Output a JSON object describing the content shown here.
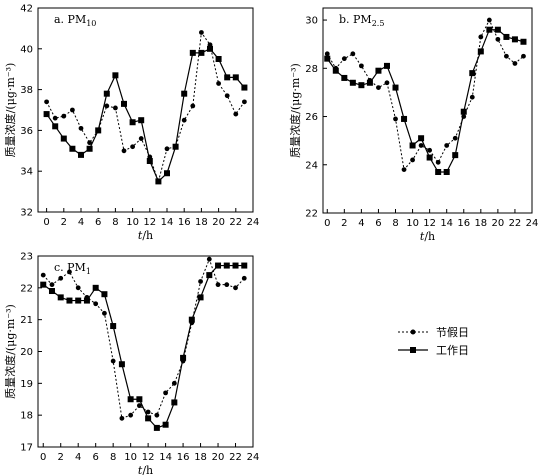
{
  "legend": {
    "holiday": "节假日",
    "workday": "工作日"
  },
  "chart_data": [
    {
      "type": "line",
      "id": "pm10",
      "title": "a. PM",
      "title_sub": "10",
      "xlabel_italic": "t",
      "xlabel_rest": "/h",
      "ylabel": "质量浓度/(μg·m⁻³)",
      "xlim": [
        -1,
        24
      ],
      "ylim": [
        32,
        42
      ],
      "xticks": [
        0,
        2,
        4,
        6,
        8,
        10,
        12,
        14,
        16,
        18,
        20,
        22,
        24
      ],
      "yticks": [
        32,
        34,
        36,
        38,
        40,
        42
      ],
      "x": [
        0,
        1,
        2,
        3,
        4,
        5,
        6,
        7,
        8,
        9,
        10,
        11,
        12,
        13,
        14,
        15,
        16,
        17,
        18,
        19,
        20,
        21,
        22,
        23
      ],
      "series": [
        {
          "name": "节假日",
          "values": [
            37.4,
            36.6,
            36.7,
            37.0,
            36.1,
            35.4,
            36.0,
            37.2,
            37.1,
            35.0,
            35.2,
            35.6,
            34.7,
            33.5,
            35.1,
            35.2,
            36.5,
            37.2,
            40.8,
            40.2,
            38.3,
            37.7,
            36.8,
            37.4
          ]
        },
        {
          "name": "工作日",
          "values": [
            36.8,
            36.2,
            35.6,
            35.1,
            34.8,
            35.1,
            36.0,
            37.8,
            38.7,
            37.3,
            36.4,
            36.5,
            34.5,
            33.5,
            33.9,
            35.2,
            37.8,
            39.8,
            39.8,
            40.0,
            39.5,
            38.6,
            38.6,
            38.1
          ]
        }
      ]
    },
    {
      "type": "line",
      "id": "pm25",
      "title": "b. PM",
      "title_sub": "2.5",
      "xlabel_italic": "t",
      "xlabel_rest": "/h",
      "ylabel": "质量浓度/(μg·m⁻³)",
      "xlim": [
        -0.5,
        24
      ],
      "ylim": [
        22,
        30.5
      ],
      "xticks": [
        0,
        2,
        4,
        6,
        8,
        10,
        12,
        14,
        16,
        18,
        20,
        22,
        24
      ],
      "yticks": [
        22,
        24,
        26,
        28,
        30
      ],
      "x": [
        0,
        1,
        2,
        3,
        4,
        5,
        6,
        7,
        8,
        9,
        10,
        11,
        12,
        13,
        14,
        15,
        16,
        17,
        18,
        19,
        20,
        21,
        22,
        23
      ],
      "series": [
        {
          "name": "节假日",
          "values": [
            28.6,
            28.0,
            28.4,
            28.6,
            28.1,
            27.5,
            27.2,
            27.4,
            25.9,
            23.8,
            24.2,
            24.8,
            24.6,
            24.1,
            24.8,
            25.1,
            26.0,
            26.8,
            29.3,
            30.0,
            29.2,
            28.5,
            28.2,
            28.5
          ]
        },
        {
          "name": "工作日",
          "values": [
            28.4,
            27.9,
            27.6,
            27.4,
            27.3,
            27.4,
            27.9,
            28.1,
            27.2,
            25.9,
            24.8,
            25.1,
            24.3,
            23.7,
            23.7,
            24.4,
            26.2,
            27.8,
            28.7,
            29.6,
            29.6,
            29.3,
            29.2,
            29.1
          ]
        }
      ]
    },
    {
      "type": "line",
      "id": "pm1",
      "title": "c. PM",
      "title_sub": "1",
      "xlabel_italic": "t",
      "xlabel_rest": "/h",
      "ylabel": "质量浓度/(μg·m⁻³)",
      "xlim": [
        -0.6,
        24
      ],
      "ylim": [
        17,
        23
      ],
      "xticks": [
        0,
        2,
        4,
        6,
        8,
        10,
        12,
        14,
        16,
        18,
        20,
        22,
        24
      ],
      "yticks": [
        17,
        18,
        19,
        20,
        21,
        22,
        23
      ],
      "x": [
        0,
        1,
        2,
        3,
        4,
        5,
        6,
        7,
        8,
        9,
        10,
        11,
        12,
        13,
        14,
        15,
        16,
        17,
        18,
        19,
        20,
        21,
        22,
        23
      ],
      "series": [
        {
          "name": "节假日",
          "values": [
            22.4,
            22.1,
            22.3,
            22.5,
            22.0,
            21.7,
            21.5,
            21.2,
            19.7,
            17.9,
            18.0,
            18.3,
            18.1,
            18.0,
            18.7,
            19.0,
            19.7,
            20.9,
            22.2,
            22.9,
            22.1,
            22.1,
            22.0,
            22.3
          ]
        },
        {
          "name": "工作日",
          "values": [
            22.1,
            21.9,
            21.7,
            21.6,
            21.6,
            21.6,
            22.0,
            21.8,
            20.8,
            19.6,
            18.5,
            18.5,
            17.9,
            17.6,
            17.7,
            18.4,
            19.8,
            21.0,
            21.7,
            22.4,
            22.7,
            22.7,
            22.7,
            22.7
          ]
        }
      ]
    }
  ]
}
